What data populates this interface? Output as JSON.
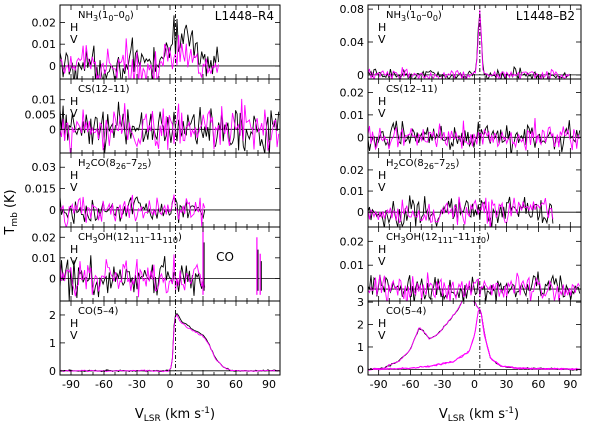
{
  "figure": {
    "ylabel": "T",
    "ylabel_sub": "mb",
    "ylabel_unit": " (K)",
    "xlabel": "V",
    "xlabel_sub": "LSR",
    "xlabel_unit": " (km s",
    "xlabel_exp": "-1",
    "xlabel_close": ")",
    "h_label": "H",
    "v_label": "V"
  },
  "chart_data": [
    {
      "type": "line",
      "source": "L1448-R4",
      "xlim": [
        -100,
        100
      ],
      "xticks": [
        -90,
        -60,
        -30,
        0,
        30,
        60,
        90
      ],
      "vlsr_marker": 5,
      "colors": {
        "H": "#000000",
        "V": "#ff00ff"
      },
      "panels": [
        {
          "line": "NH3(10-00)",
          "line_main": "NH",
          "line_sub": "3",
          "line_main2": "(1",
          "line_sub2": "0",
          "line_main3": "–0",
          "line_sub3": "0",
          "line_main4": ")",
          "source_label": "L1448–R4",
          "ylim": [
            -0.006,
            0.028
          ],
          "yticks": [
            0,
            0.01,
            0.02
          ],
          "yticklabels": [
            "0",
            "0.01",
            "0.02"
          ],
          "noise": 0.0045,
          "coverage": [
            -100,
            45
          ],
          "features": [
            {
              "center": 12,
              "width": 12,
              "amp": 0.014,
              "pol": "H"
            },
            {
              "center": 12,
              "width": 8,
              "amp": 0.004,
              "pol": "V"
            }
          ]
        },
        {
          "line": "CS(12-11)",
          "line_main": "CS(12–11)",
          "ylim": [
            -0.008,
            0.017
          ],
          "yticks": [
            0,
            0.005,
            0.01
          ],
          "yticklabels": [
            "0",
            "0.005",
            "0.01"
          ],
          "noise": 0.004,
          "coverage": [
            -100,
            100
          ],
          "features": []
        },
        {
          "line": "H2CO(826-725)",
          "line_main": "H",
          "line_sub": "2",
          "line_main2": "CO(8",
          "line_sub2": "26",
          "line_main3": "–7",
          "line_sub3": "25",
          "line_main4": ")",
          "ylim": [
            -0.012,
            0.04
          ],
          "yticks": [
            0,
            0.015,
            0.03
          ],
          "yticklabels": [
            "0",
            "0.015",
            "0.03"
          ],
          "noise": 0.0045,
          "coverage": [
            -100,
            32
          ],
          "features": []
        },
        {
          "line": "CH3OH(12111-11110)",
          "line_main": "CH",
          "line_sub": "3",
          "line_main2": "OH(12",
          "line_sub2": "111",
          "line_main3": "–11",
          "line_sub3": "110",
          "line_main4": ")",
          "extra_label": "CO",
          "ylim": [
            -0.011,
            0.025
          ],
          "yticks": [
            0,
            0.01,
            0.02
          ],
          "yticklabels": [
            "0",
            "0.01",
            "0.02"
          ],
          "noise": 0.0045,
          "coverage": [
            -100,
            32
          ],
          "features": [],
          "spikes": [
            {
              "x": 30,
              "h": 0.025
            },
            {
              "x": 79,
              "h": 0.02
            },
            {
              "x": 82,
              "h": 0.012
            }
          ]
        },
        {
          "line": "CO(5-4)",
          "line_main": "CO(5–4)",
          "ylim": [
            -0.15,
            2.5
          ],
          "yticks": [
            0,
            1,
            2
          ],
          "yticklabels": [
            "0",
            "1",
            "2"
          ],
          "noise": 0.015,
          "coverage": [
            -100,
            100
          ],
          "profile": [
            [
              -100,
              0
            ],
            [
              0,
              0
            ],
            [
              2,
              0.3
            ],
            [
              4,
              1.9
            ],
            [
              6,
              2.1
            ],
            [
              10,
              1.8
            ],
            [
              20,
              1.5
            ],
            [
              30,
              1.3
            ],
            [
              35,
              1.0
            ],
            [
              42,
              0.4
            ],
            [
              50,
              0.1
            ],
            [
              56,
              0
            ],
            [
              100,
              0
            ]
          ],
          "profile_v_scale": 0.96
        }
      ]
    },
    {
      "type": "line",
      "source": "L1448-B2",
      "xlim": [
        -100,
        100
      ],
      "xticks": [
        -90,
        -60,
        -30,
        0,
        30,
        60,
        90
      ],
      "vlsr_marker": 5,
      "colors": {
        "H": "#000000",
        "V": "#ff00ff"
      },
      "panels": [
        {
          "line": "NH3(10-00)",
          "line_main": "NH",
          "line_sub": "3",
          "line_main2": "(1",
          "line_sub2": "0",
          "line_main3": "–0",
          "line_sub3": "0",
          "line_main4": ")",
          "source_label": "L1448–B2",
          "ylim": [
            -0.005,
            0.085
          ],
          "yticks": [
            0,
            0.04,
            0.08
          ],
          "yticklabels": [
            "0",
            "0.04",
            "0.08"
          ],
          "noise": 0.0035,
          "coverage": [
            -100,
            90
          ],
          "features": [
            {
              "center": 5,
              "width": 1.5,
              "amp": 0.078,
              "pol": "both"
            }
          ]
        },
        {
          "line": "CS(12-11)",
          "line_main": "CS(12–11)",
          "ylim": [
            -0.007,
            0.026
          ],
          "yticks": [
            0,
            0.01,
            0.02
          ],
          "yticklabels": [
            "0",
            "0.01",
            "0.02"
          ],
          "noise": 0.003,
          "coverage": [
            -100,
            100
          ],
          "features": []
        },
        {
          "line": "H2CO(826-725)",
          "line_main": "H",
          "line_sub": "2",
          "line_main2": "CO(8",
          "line_sub2": "26",
          "line_main3": "–7",
          "line_sub3": "25",
          "line_main4": ")",
          "ylim": [
            -0.007,
            0.028
          ],
          "yticks": [
            0,
            0.01,
            0.02
          ],
          "yticklabels": [
            "0",
            "0.01",
            "0.02"
          ],
          "noise": 0.0035,
          "coverage": [
            -100,
            75
          ],
          "features": []
        },
        {
          "line": "CH3OH(12111-11110)",
          "line_main": "CH",
          "line_sub": "3",
          "line_main2": "OH(12",
          "line_sub2": "111",
          "line_main3": "–11",
          "line_sub3": "110",
          "line_main4": ")",
          "ylim": [
            -0.005,
            0.026
          ],
          "yticks": [
            0,
            0.01,
            0.02
          ],
          "yticklabels": [
            "0",
            "0.01",
            "0.02"
          ],
          "noise": 0.0028,
          "coverage": [
            -100,
            100
          ],
          "features": []
        },
        {
          "line": "CO(5-4)",
          "line_main": "CO(5–4)",
          "ylim": [
            -0.25,
            3.05
          ],
          "yticks": [
            0,
            1,
            2,
            3
          ],
          "yticklabels": [
            "0",
            "1",
            "2",
            "3"
          ],
          "noise": 0.02,
          "coverage": [
            -100,
            100
          ],
          "profile": [
            [
              -100,
              0
            ],
            [
              -85,
              0.05
            ],
            [
              -70,
              0.4
            ],
            [
              -60,
              0.9
            ],
            [
              -52,
              1.85
            ],
            [
              -48,
              1.7
            ],
            [
              -42,
              1.35
            ],
            [
              -35,
              1.55
            ],
            [
              -25,
              2.1
            ],
            [
              -15,
              2.7
            ],
            [
              -10,
              3.2
            ],
            [
              -5,
              3.3
            ],
            [
              0,
              3.0
            ],
            [
              4,
              2.7
            ],
            [
              6,
              2.6
            ],
            [
              10,
              1.4
            ],
            [
              15,
              0.5
            ],
            [
              25,
              0.15
            ],
            [
              40,
              0.05
            ],
            [
              100,
              0
            ]
          ],
          "profile2": [
            [
              -100,
              0
            ],
            [
              -60,
              0.05
            ],
            [
              -40,
              0.15
            ],
            [
              -20,
              0.35
            ],
            [
              -5,
              0.8
            ],
            [
              0,
              1.5
            ],
            [
              4,
              2.7
            ],
            [
              6,
              2.6
            ],
            [
              9,
              1.6
            ],
            [
              15,
              0.5
            ],
            [
              25,
              0.15
            ],
            [
              40,
              0.05
            ],
            [
              100,
              0
            ]
          ],
          "profile_v_scale": 1.0
        }
      ]
    }
  ]
}
